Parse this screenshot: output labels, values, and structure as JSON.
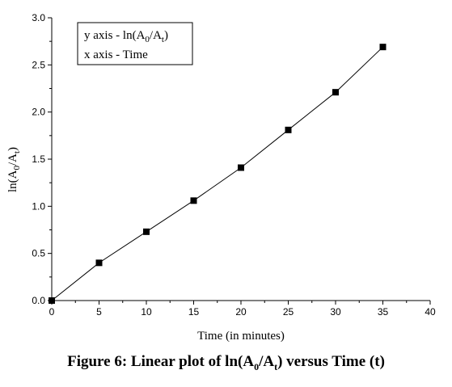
{
  "chart_data": {
    "type": "line",
    "x": [
      0,
      5,
      10,
      15,
      20,
      25,
      30,
      35
    ],
    "series": [
      {
        "values": [
          0.0,
          0.4,
          0.73,
          1.06,
          1.41,
          1.81,
          2.21,
          2.69
        ],
        "markers": "square",
        "color": "#000000"
      }
    ],
    "xlim": [
      0,
      40
    ],
    "ylim": [
      0,
      3.0
    ],
    "x_ticks": [
      0,
      5,
      10,
      15,
      20,
      25,
      30,
      35,
      40
    ],
    "y_ticks": [
      "0.0",
      "0.5",
      "1.0",
      "1.5",
      "2.0",
      "2.5",
      "3.0"
    ],
    "xlabel": "Time (in minutes)",
    "ylabel": {
      "base": "ln(A",
      "sub1": "0",
      "mid": "/A",
      "sub2": "t",
      "end": ")"
    },
    "legend": {
      "placement": "top-left",
      "line1": {
        "base": "y axis - ln(A",
        "sub1": "0",
        "mid": "/A",
        "sub2": "t",
        "end": ")"
      },
      "line2": "x axis - Time"
    },
    "grid": false
  },
  "caption": {
    "base": "Figure 6: Linear plot of ln(A",
    "sub1": "0",
    "mid": "/A",
    "sub2": "t",
    "end": ") versus Time (t)"
  }
}
